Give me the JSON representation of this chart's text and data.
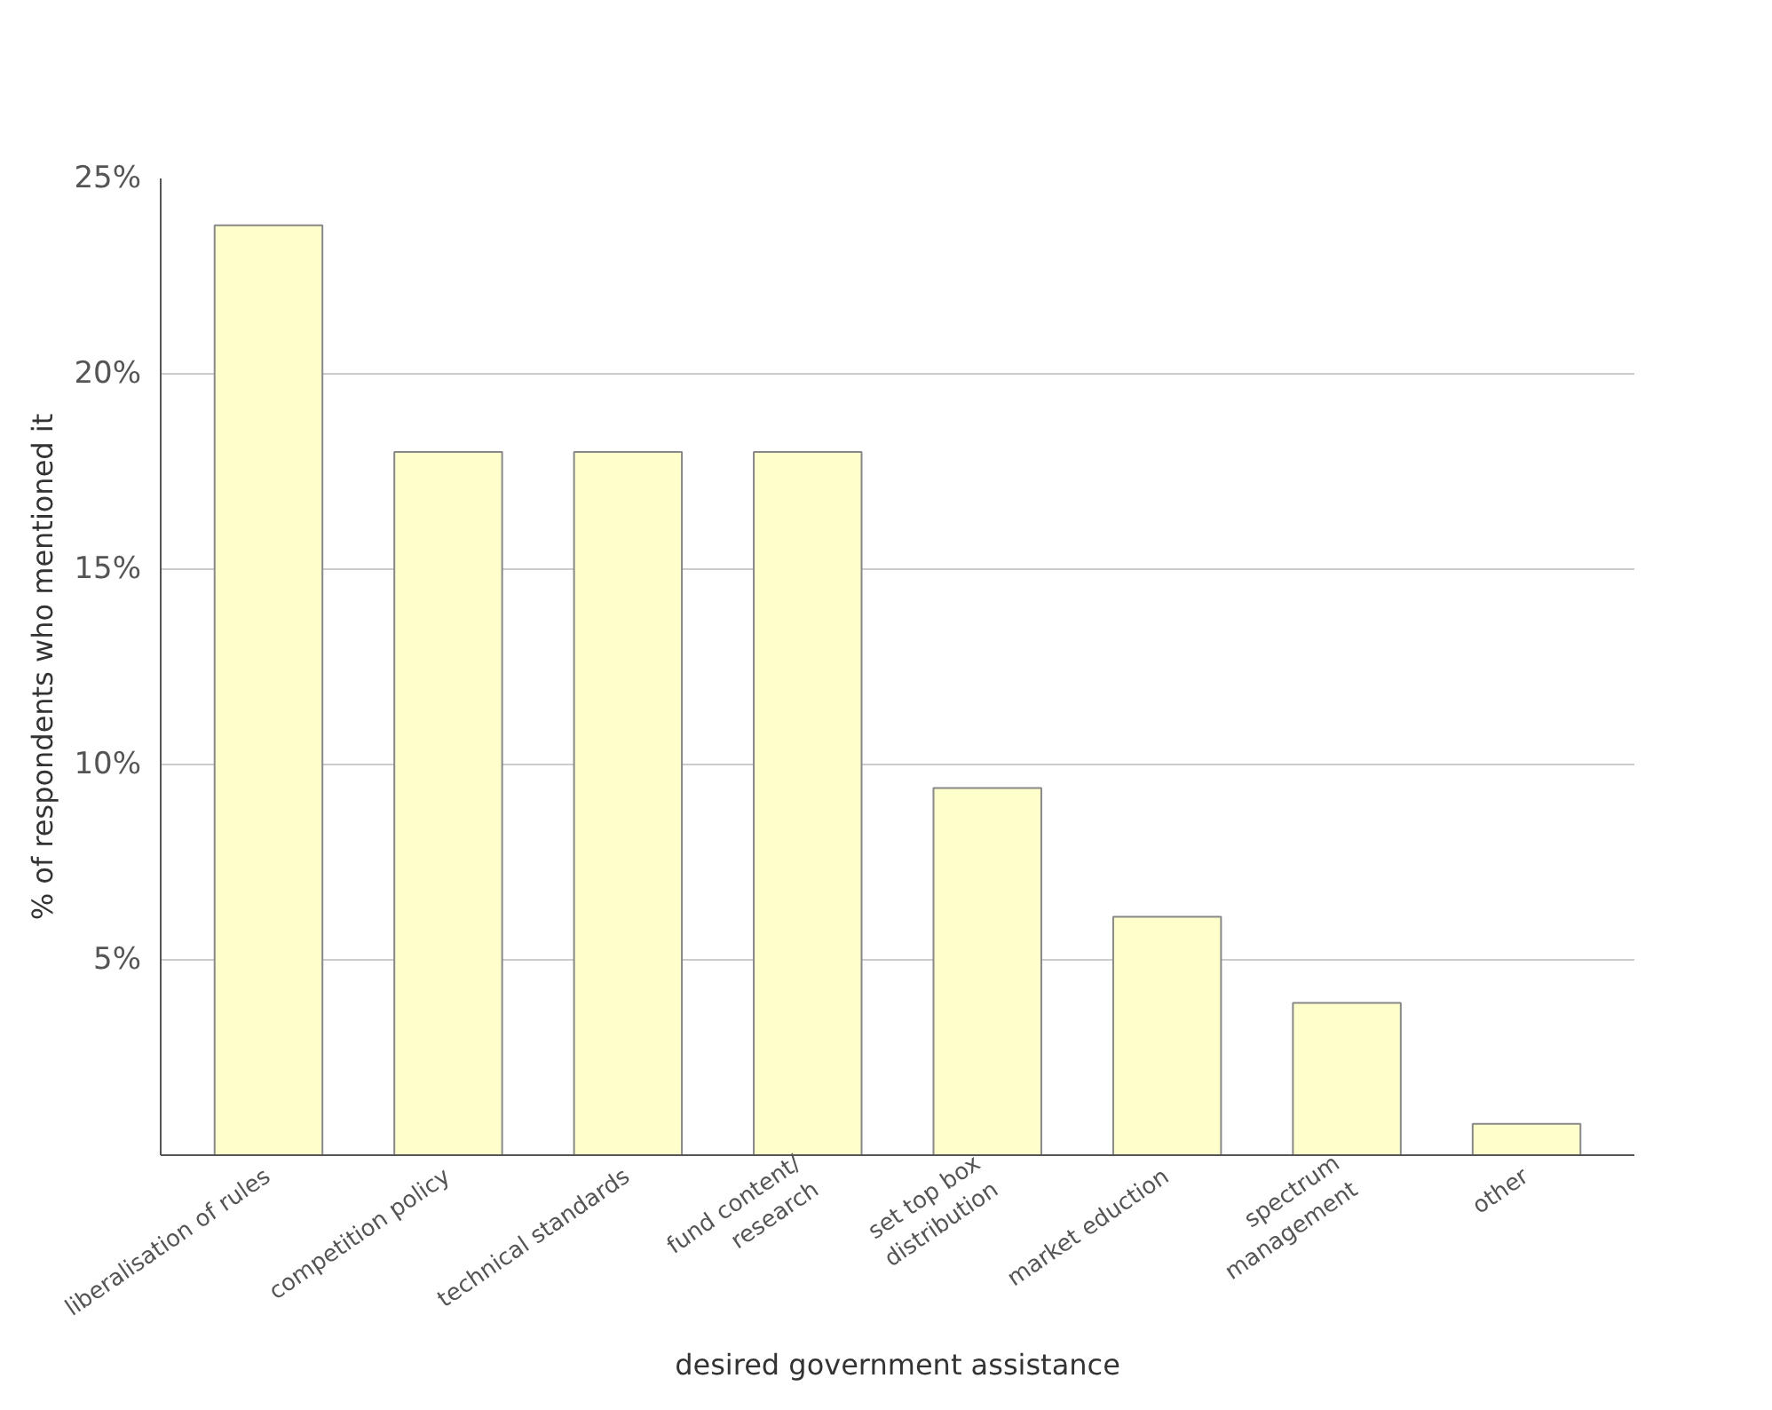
{
  "chart_data": {
    "type": "bar",
    "xlabel": "desired government assistance",
    "ylabel": "% of respondents who mentioned it",
    "categories": [
      "liberalisation of rules",
      "competition policy",
      "technical standards",
      "fund content/\nresearch",
      "set top box\ndistribution",
      "market eduction",
      "spectrum\nmanagement",
      "other"
    ],
    "values": [
      23.8,
      18,
      18,
      18,
      9.4,
      6.1,
      3.9,
      0.8
    ],
    "color": "#ffffcc",
    "ylim": [
      0,
      25
    ],
    "yticks": [
      {
        "value": 5,
        "label": "5%"
      },
      {
        "value": 10,
        "label": "10%"
      },
      {
        "value": 15,
        "label": "15%"
      },
      {
        "value": 20,
        "label": "20%"
      },
      {
        "value": 25,
        "label": "25%"
      }
    ],
    "grid": "y"
  }
}
